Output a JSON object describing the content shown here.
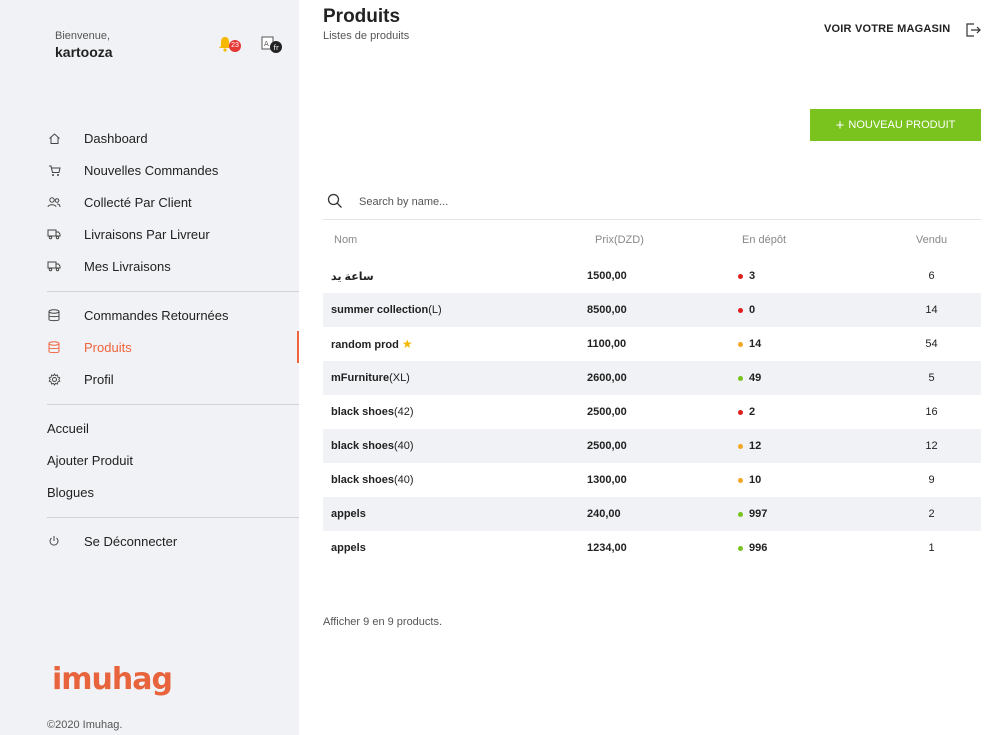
{
  "sidebar": {
    "welcome": "Bienvenue,",
    "username": "kartooza",
    "notification_count": "23",
    "nav_group1": [
      {
        "label": "Dashboard",
        "icon": "home-icon"
      },
      {
        "label": "Nouvelles Commandes",
        "icon": "cart-icon"
      },
      {
        "label": "Collecté Par Client",
        "icon": "users-icon"
      },
      {
        "label": "Livraisons Par Livreur",
        "icon": "truck-icon"
      },
      {
        "label": "Mes Livraisons",
        "icon": "truck-icon"
      }
    ],
    "nav_group2": [
      {
        "label": "Commandes Retournées",
        "icon": "database-icon"
      },
      {
        "label": "Produits",
        "icon": "database-icon",
        "active": true
      },
      {
        "label": "Profil",
        "icon": "gear-icon"
      }
    ],
    "nav_group3": [
      {
        "label": "Accueil"
      },
      {
        "label": "Ajouter Produit"
      },
      {
        "label": "Blogues"
      }
    ],
    "logout": "Se Déconnecter",
    "brand": "imuhag",
    "copyright": "©2020 Imuhag."
  },
  "header": {
    "title": "Produits",
    "subtitle": "Listes de produits",
    "store_link": "VOIR VOTRE MAGASIN"
  },
  "actions": {
    "new_product": "NOUVEAU PRODUIT"
  },
  "search": {
    "placeholder": "Search by name..."
  },
  "table": {
    "headers": [
      "Nom",
      "Prix(DZD)",
      "En dépôt",
      "Vendu"
    ],
    "rows": [
      {
        "name": "ساعة يد",
        "variant": "",
        "star": false,
        "price": "1500,00",
        "stock": "3",
        "stock_status": "red",
        "sold": "6"
      },
      {
        "name": "summer collection",
        "variant": "(L)",
        "star": false,
        "price": "8500,00",
        "stock": "0",
        "stock_status": "red",
        "sold": "14"
      },
      {
        "name": "random prod",
        "variant": "",
        "star": true,
        "price": "1100,00",
        "stock": "14",
        "stock_status": "orange",
        "sold": "54"
      },
      {
        "name": "mFurniture",
        "variant": "(XL)",
        "star": false,
        "price": "2600,00",
        "stock": "49",
        "stock_status": "green",
        "sold": "5"
      },
      {
        "name": "black shoes",
        "variant": "(42)",
        "star": false,
        "price": "2500,00",
        "stock": "2",
        "stock_status": "red",
        "sold": "16"
      },
      {
        "name": "black shoes",
        "variant": "(40)",
        "star": false,
        "price": "2500,00",
        "stock": "12",
        "stock_status": "orange",
        "sold": "12"
      },
      {
        "name": "black shoes",
        "variant": "(40)",
        "star": false,
        "price": "1300,00",
        "stock": "10",
        "stock_status": "orange",
        "sold": "9"
      },
      {
        "name": "appels",
        "variant": "",
        "star": false,
        "price": "240,00",
        "stock": "997",
        "stock_status": "green",
        "sold": "2"
      },
      {
        "name": "appels",
        "variant": "",
        "star": false,
        "price": "1234,00",
        "stock": "996",
        "stock_status": "green",
        "sold": "1"
      }
    ],
    "footer": "Afficher 9 en 9 products."
  },
  "colors": {
    "accent": "#f0643c",
    "primary_button": "#7ac31f",
    "red": "#e01e1e",
    "orange": "#f5a623",
    "green": "#7ac31f"
  }
}
